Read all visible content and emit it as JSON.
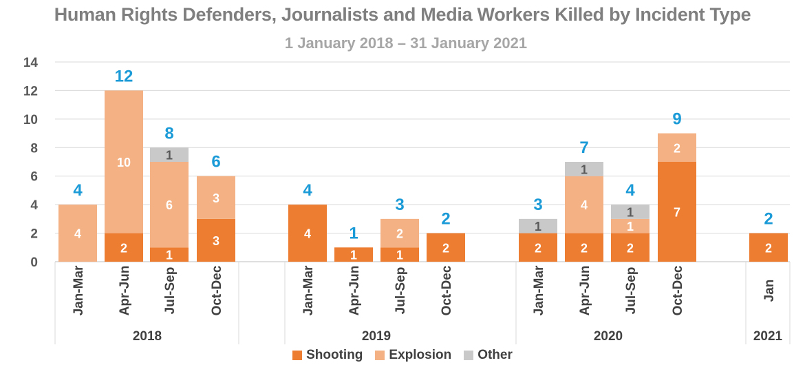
{
  "chart_data": {
    "type": "bar",
    "stacked": true,
    "title": "Human Rights Defenders, Journalists and Media Workers Killed by Incident Type",
    "subtitle": "1 January 2018 – 31 January 2021",
    "ylim": [
      0,
      14
    ],
    "yticks": [
      "0",
      "2",
      "4",
      "6",
      "8",
      "10",
      "12",
      "14"
    ],
    "grid": true,
    "legend_position": "bottom",
    "groups": [
      {
        "label": "2018",
        "categories": [
          "Jan-Mar",
          "Apr-Jun",
          "Jul-Sep",
          "Oct-Dec"
        ]
      },
      {
        "label": "2019",
        "categories": [
          "Jan-Mar",
          "Apr-Jun",
          "Jul-Sep",
          "Oct-Dec"
        ]
      },
      {
        "label": "2020",
        "categories": [
          "Jan-Mar",
          "Apr-Jun",
          "Jul-Sep",
          "Oct-Dec"
        ]
      },
      {
        "label": "2021",
        "categories": [
          "Jan"
        ]
      }
    ],
    "categories": [
      "Jan-Mar",
      "Apr-Jun",
      "Jul-Sep",
      "Oct-Dec",
      "Jan-Mar",
      "Apr-Jun",
      "Jul-Sep",
      "Oct-Dec",
      "Jan-Mar",
      "Apr-Jun",
      "Jul-Sep",
      "Oct-Dec",
      "Jan"
    ],
    "series": [
      {
        "name": "Shooting",
        "color": "#ed7d31",
        "values": [
          0,
          2,
          1,
          3,
          4,
          1,
          1,
          2,
          2,
          2,
          2,
          7,
          2
        ]
      },
      {
        "name": "Explosion",
        "color": "#f4b183",
        "values": [
          4,
          10,
          6,
          3,
          0,
          0,
          2,
          0,
          0,
          4,
          1,
          2,
          0
        ]
      },
      {
        "name": "Other",
        "color": "#c9c9c9",
        "values": [
          0,
          0,
          1,
          0,
          0,
          0,
          0,
          0,
          1,
          1,
          1,
          0,
          0
        ]
      }
    ],
    "totals": [
      4,
      12,
      8,
      6,
      4,
      1,
      3,
      2,
      3,
      7,
      4,
      9,
      2
    ],
    "colors": {
      "total_label": "#1a9ad6",
      "grid": "#d9d9d9",
      "axis_text": "#404040"
    }
  }
}
